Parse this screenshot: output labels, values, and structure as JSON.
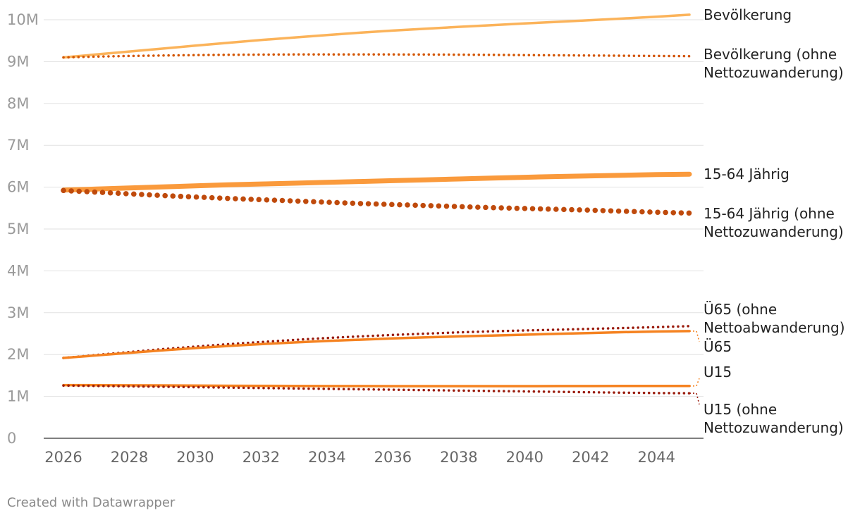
{
  "chart_data": {
    "type": "line",
    "title": "",
    "xlabel": "",
    "ylabel": "",
    "x": [
      2026,
      2027,
      2028,
      2029,
      2030,
      2031,
      2032,
      2033,
      2034,
      2035,
      2036,
      2037,
      2038,
      2039,
      2040,
      2041,
      2042,
      2043,
      2044,
      2045
    ],
    "xlim": [
      2026,
      2045
    ],
    "ylim": [
      0,
      10000000
    ],
    "grid": true,
    "legend": "direct-labels-right",
    "x_ticks": [
      "2026",
      "2028",
      "2030",
      "2032",
      "2034",
      "2036",
      "2038",
      "2040",
      "2042",
      "2044"
    ],
    "x_tick_values": [
      2026,
      2028,
      2030,
      2032,
      2034,
      2036,
      2038,
      2040,
      2042,
      2044
    ],
    "y_ticks": [
      "0",
      "1M",
      "2M",
      "3M",
      "4M",
      "5M",
      "6M",
      "7M",
      "8M",
      "9M",
      "10M"
    ],
    "y_tick_values": [
      0,
      1000000,
      2000000,
      3000000,
      4000000,
      5000000,
      6000000,
      7000000,
      8000000,
      9000000,
      10000000
    ],
    "series": [
      {
        "name": "Bevölkerung",
        "label_lines": [
          "Bevölkerung"
        ],
        "color": "#fbb35a",
        "style": "solid",
        "values": [
          9100000,
          9170000,
          9240000,
          9310000,
          9380000,
          9450000,
          9515000,
          9575000,
          9635000,
          9690000,
          9740000,
          9785000,
          9830000,
          9870000,
          9910000,
          9950000,
          9990000,
          10030000,
          10070000,
          10120000
        ]
      },
      {
        "name": "Bevölkerung (ohne Nettozuwanderung)",
        "label_lines": [
          "Bevölkerung (ohne",
          "Nettozuwanderung)"
        ],
        "color": "#d35400",
        "style": "dotted",
        "values": [
          9100000,
          9120000,
          9135000,
          9145000,
          9155000,
          9162000,
          9167000,
          9170000,
          9172000,
          9172000,
          9170000,
          9168000,
          9165000,
          9160000,
          9155000,
          9150000,
          9145000,
          9140000,
          9135000,
          9130000
        ]
      },
      {
        "name": "15-64 Jährig",
        "label_lines": [
          "15-64 Jährig"
        ],
        "color": "#fa9a3c",
        "style": "solid-thick",
        "values": [
          5930000,
          5955000,
          5980000,
          6005000,
          6030000,
          6055000,
          6075000,
          6095000,
          6115000,
          6135000,
          6155000,
          6175000,
          6195000,
          6215000,
          6235000,
          6255000,
          6270000,
          6285000,
          6300000,
          6310000
        ]
      },
      {
        "name": "15-64 Jährig (ohne Nettozuwanderung)",
        "label_lines": [
          "15-64 Jährig (ohne",
          "Nettozuwanderung)"
        ],
        "color": "#bf4a0c",
        "style": "dotted-thick",
        "values": [
          5920000,
          5880000,
          5840000,
          5800000,
          5765000,
          5730000,
          5700000,
          5670000,
          5640000,
          5610000,
          5585000,
          5560000,
          5535000,
          5510000,
          5490000,
          5470000,
          5450000,
          5425000,
          5400000,
          5380000
        ]
      },
      {
        "name": "Ü65 (ohne Nettoabwanderung)",
        "label_lines": [
          "Ü65 (ohne",
          "Nettoabwanderung)"
        ],
        "color": "#9a1b0c",
        "style": "dotted",
        "values": [
          1920000,
          1990000,
          2060000,
          2130000,
          2190000,
          2250000,
          2300000,
          2350000,
          2395000,
          2435000,
          2470000,
          2500000,
          2530000,
          2555000,
          2575000,
          2595000,
          2615000,
          2635000,
          2655000,
          2680000
        ]
      },
      {
        "name": "Ü65",
        "label_lines": [
          "Ü65"
        ],
        "color": "#f58220",
        "style": "solid",
        "values": [
          1920000,
          1980000,
          2040000,
          2100000,
          2155000,
          2205000,
          2250000,
          2290000,
          2325000,
          2355000,
          2385000,
          2410000,
          2435000,
          2455000,
          2475000,
          2495000,
          2515000,
          2535000,
          2550000,
          2560000
        ]
      },
      {
        "name": "U15",
        "label_lines": [
          "U15"
        ],
        "color": "#f58220",
        "style": "solid",
        "values": [
          1270000,
          1268000,
          1265000,
          1262000,
          1258000,
          1255000,
          1252000,
          1250000,
          1248000,
          1247000,
          1246000,
          1245000,
          1245000,
          1245000,
          1246000,
          1247000,
          1248000,
          1249000,
          1250000,
          1250000
        ]
      },
      {
        "name": "U15 (ohne Nettozuwanderung)",
        "label_lines": [
          "U15 (ohne",
          "Nettozuwanderung)"
        ],
        "color": "#9a1b0c",
        "style": "dotted",
        "values": [
          1260000,
          1250000,
          1240000,
          1230000,
          1220000,
          1210000,
          1200000,
          1190000,
          1180000,
          1170000,
          1160000,
          1150000,
          1140000,
          1130000,
          1120000,
          1110000,
          1100000,
          1090000,
          1080000,
          1075000
        ]
      }
    ]
  },
  "footer": {
    "credit": "Created with Datawrapper"
  }
}
